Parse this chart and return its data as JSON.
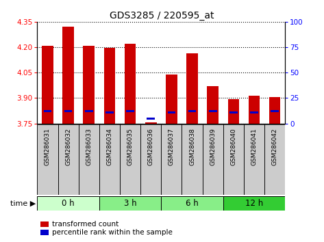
{
  "title": "GDS3285 / 220595_at",
  "samples": [
    "GSM286031",
    "GSM286032",
    "GSM286033",
    "GSM286034",
    "GSM286035",
    "GSM286036",
    "GSM286037",
    "GSM286038",
    "GSM286039",
    "GSM286040",
    "GSM286041",
    "GSM286042"
  ],
  "bar_bottom": 3.75,
  "transformed_count": [
    4.21,
    4.32,
    4.21,
    4.195,
    4.22,
    3.758,
    4.04,
    4.165,
    3.97,
    3.895,
    3.915,
    3.905
  ],
  "percentile_values": [
    12,
    12,
    12,
    11,
    12,
    5,
    11,
    12,
    12,
    11,
    11,
    12
  ],
  "ylim": [
    3.75,
    4.35
  ],
  "y2lim": [
    0,
    100
  ],
  "yticks_left": [
    3.75,
    3.9,
    4.05,
    4.2,
    4.35
  ],
  "yticks_right": [
    0,
    25,
    50,
    75,
    100
  ],
  "bar_color": "#cc0000",
  "percentile_color": "#0000cc",
  "bar_width": 0.55,
  "group_labels": [
    "0 h",
    "3 h",
    "6 h",
    "12 h"
  ],
  "group_sizes": [
    3,
    3,
    3,
    3
  ],
  "group_colors": [
    "#ccffcc",
    "#88ee88",
    "#88ee88",
    "#33cc33"
  ],
  "sample_box_color": "#cccccc",
  "legend_red_label": "transformed count",
  "legend_blue_label": "percentile rank within the sample"
}
